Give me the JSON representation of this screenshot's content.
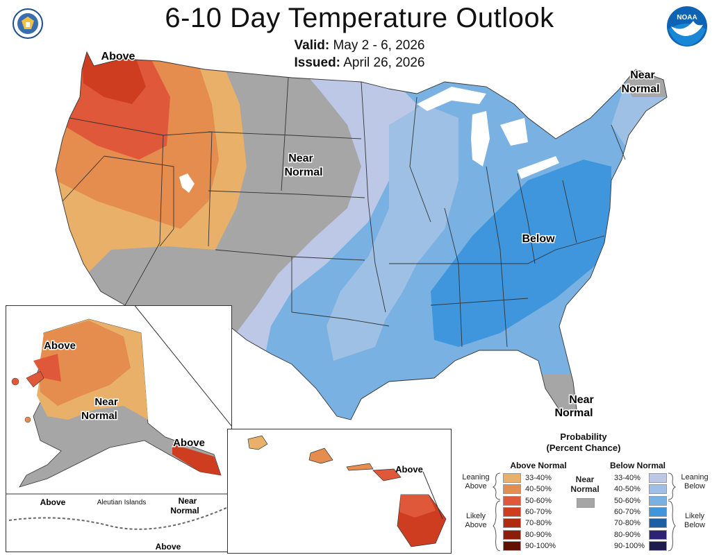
{
  "header": {
    "title": "6-10 Day Temperature Outlook",
    "valid_label": "Valid:",
    "valid_value": "May 2 - 6, 2026",
    "issued_label": "Issued:",
    "issued_value": "April 26, 2026"
  },
  "logos": {
    "noaa": "NOAA"
  },
  "map_labels": {
    "conus_above": "Above",
    "conus_near_normal_line1": "Near",
    "conus_near_normal_line2": "Normal",
    "ne_near_line1": "Near",
    "ne_near_line2": "Normal",
    "conus_below": "Below",
    "fl_near_line1": "Near",
    "fl_near_line2": "Normal",
    "ak_above": "Above",
    "ak_near_line1": "Near",
    "ak_near_line2": "Normal",
    "ak_se_above": "Above",
    "aleutian_title": "Aleutian Islands",
    "aleutian_above_left": "Above",
    "aleutian_near_line1": "Near",
    "aleutian_near_line2": "Normal",
    "aleutian_above_bottom": "Above",
    "hawaii_above": "Above"
  },
  "legend": {
    "title_line1": "Probability",
    "title_line2": "(Percent Chance)",
    "above_header": "Above Normal",
    "below_header": "Below Normal",
    "near_line1": "Near",
    "near_line2": "Normal",
    "leaning_above_1": "Leaning",
    "leaning_above_2": "Above",
    "likely_above_1": "Likely",
    "likely_above_2": "Above",
    "leaning_below_1": "Leaning",
    "leaning_below_2": "Below",
    "likely_below_1": "Likely",
    "likely_below_2": "Below",
    "above": [
      {
        "range": "33-40%",
        "color": "#e8b068"
      },
      {
        "range": "40-50%",
        "color": "#e58c4f"
      },
      {
        "range": "50-60%",
        "color": "#e0583a"
      },
      {
        "range": "60-70%",
        "color": "#cf3d21"
      },
      {
        "range": "70-80%",
        "color": "#b02a10"
      },
      {
        "range": "80-90%",
        "color": "#8a1e0a"
      },
      {
        "range": "90-100%",
        "color": "#601104"
      }
    ],
    "below": [
      {
        "range": "33-40%",
        "color": "#bcc8e6"
      },
      {
        "range": "40-50%",
        "color": "#9ec0e4"
      },
      {
        "range": "50-60%",
        "color": "#78b1e2"
      },
      {
        "range": "60-70%",
        "color": "#3f96dc"
      },
      {
        "range": "70-80%",
        "color": "#1c5fa6"
      },
      {
        "range": "80-90%",
        "color": "#2c2377"
      },
      {
        "range": "90-100%",
        "color": "#1e1b4d"
      }
    ],
    "near_color": "#a6a6a6"
  }
}
